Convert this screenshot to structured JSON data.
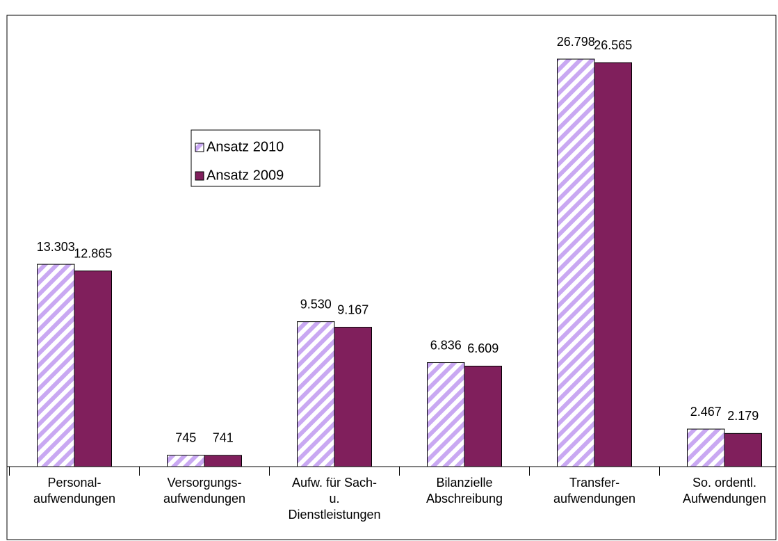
{
  "chart_data": {
    "type": "bar",
    "categories": [
      [
        "Personal-",
        "aufwendungen"
      ],
      [
        "Versorgungs-",
        "aufwendungen"
      ],
      [
        "Aufw. für Sach-",
        "u.",
        "Dienstleistungen"
      ],
      [
        "Bilanzielle",
        "Abschreibung"
      ],
      [
        "Transfer-",
        "aufwendungen"
      ],
      [
        "So. ordentl.",
        "Aufwendungen"
      ]
    ],
    "series": [
      {
        "name": "Ansatz 2010",
        "color": "#c9a8f2",
        "hatch": true,
        "values": [
          13303,
          745,
          9530,
          6836,
          26798,
          2467
        ],
        "value_labels": [
          "13.303",
          "745",
          "9.530",
          "6.836",
          "26.798",
          "2.467"
        ]
      },
      {
        "name": "Ansatz 2009",
        "color": "#801f5c",
        "hatch": false,
        "values": [
          12865,
          741,
          9167,
          6609,
          26565,
          2179
        ],
        "value_labels": [
          "12.865",
          "741",
          "9.167",
          "6.609",
          "26.565",
          "2.179"
        ]
      }
    ],
    "legend": "upper-left"
  }
}
